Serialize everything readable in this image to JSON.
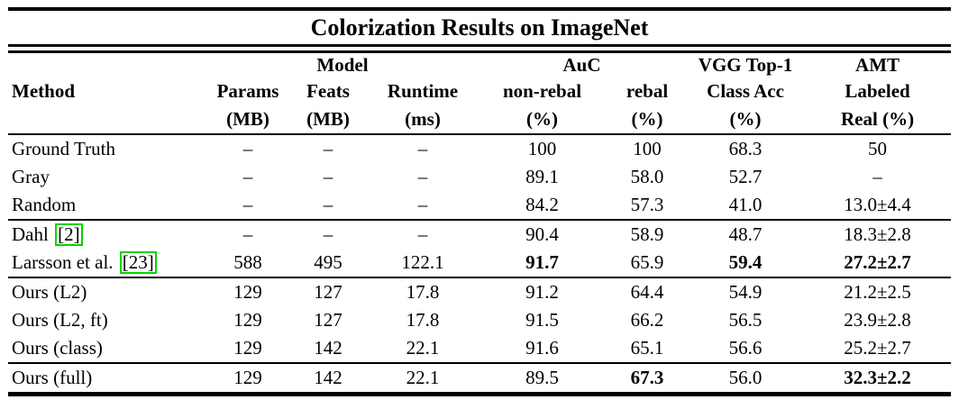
{
  "title": "Colorization Results on ImageNet",
  "colors": {
    "citation_border": "#00d400",
    "text": "#000000",
    "background": "#ffffff"
  },
  "table": {
    "group_headers": [
      {
        "label": "",
        "span": 1
      },
      {
        "label": "Model",
        "span": 3
      },
      {
        "label": "AuC",
        "span": 2
      },
      {
        "label": "VGG Top-1",
        "span": 1
      },
      {
        "label": "AMT",
        "span": 1
      }
    ],
    "columns": [
      {
        "name": "Method",
        "unit": ""
      },
      {
        "name": "Params",
        "unit": "(MB)"
      },
      {
        "name": "Feats",
        "unit": "(MB)"
      },
      {
        "name": "Runtime",
        "unit": "(ms)"
      },
      {
        "name": "non-rebal",
        "unit": "(%)"
      },
      {
        "name": "rebal",
        "unit": "(%)"
      },
      {
        "name": "Class Acc",
        "unit": "(%)"
      },
      {
        "name": "Labeled",
        "unit": "Real (%)"
      }
    ],
    "rows": [
      {
        "method": "Ground Truth",
        "citation": "",
        "values": [
          "–",
          "–",
          "–",
          "100",
          "100",
          "68.3",
          "50"
        ],
        "bold_values": [],
        "rule_after": false
      },
      {
        "method": "Gray",
        "citation": "",
        "values": [
          "–",
          "–",
          "–",
          "89.1",
          "58.0",
          "52.7",
          "–"
        ],
        "bold_values": [],
        "rule_after": false
      },
      {
        "method": "Random",
        "citation": "",
        "values": [
          "–",
          "–",
          "–",
          "84.2",
          "57.3",
          "41.0",
          "13.0±4.4"
        ],
        "bold_values": [],
        "rule_after": true
      },
      {
        "method": "Dahl",
        "citation": "[2]",
        "values": [
          "–",
          "–",
          "–",
          "90.4",
          "58.9",
          "48.7",
          "18.3±2.8"
        ],
        "bold_values": [],
        "rule_after": false
      },
      {
        "method": "Larsson et al.",
        "citation": "[23]",
        "values": [
          "588",
          "495",
          "122.1",
          "91.7",
          "65.9",
          "59.4",
          "27.2±2.7"
        ],
        "bold_values": [
          3,
          5,
          6
        ],
        "rule_after": true
      },
      {
        "method": "Ours (L2)",
        "citation": "",
        "values": [
          "129",
          "127",
          "17.8",
          "91.2",
          "64.4",
          "54.9",
          "21.2±2.5"
        ],
        "bold_values": [],
        "rule_after": false
      },
      {
        "method": "Ours (L2, ft)",
        "citation": "",
        "values": [
          "129",
          "127",
          "17.8",
          "91.5",
          "66.2",
          "56.5",
          "23.9±2.8"
        ],
        "bold_values": [],
        "rule_after": false
      },
      {
        "method": "Ours (class)",
        "citation": "",
        "values": [
          "129",
          "142",
          "22.1",
          "91.6",
          "65.1",
          "56.6",
          "25.2±2.7"
        ],
        "bold_values": [],
        "rule_after": true
      },
      {
        "method": "Ours (full)",
        "citation": "",
        "values": [
          "129",
          "142",
          "22.1",
          "89.5",
          "67.3",
          "56.0",
          "32.3±2.2"
        ],
        "bold_values": [
          4,
          6
        ],
        "rule_after": false
      }
    ]
  }
}
